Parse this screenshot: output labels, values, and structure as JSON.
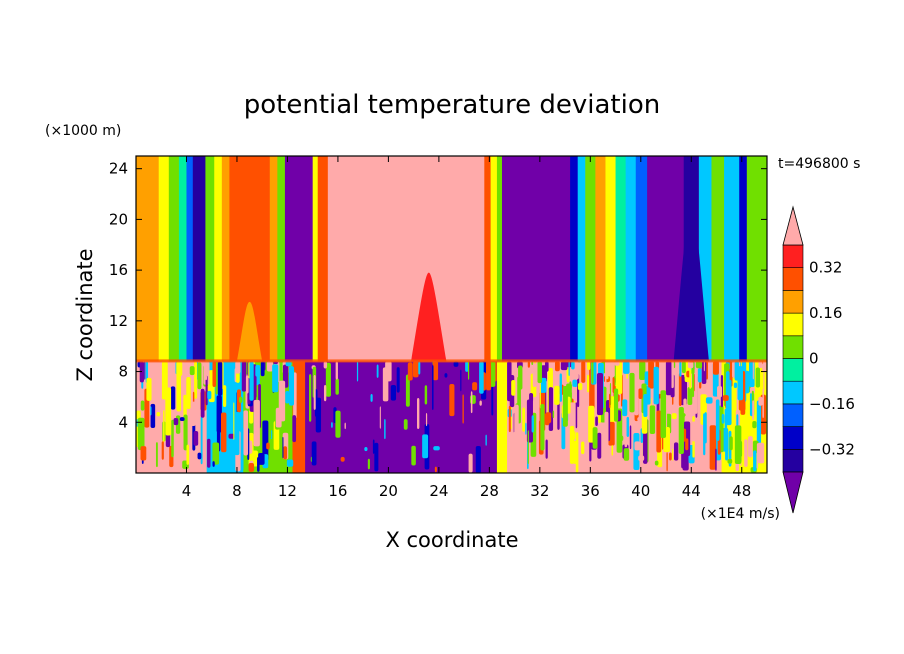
{
  "chart_data": {
    "type": "heatmap",
    "title": "potential temperature deviation",
    "xlabel": "X coordinate",
    "ylabel": "Z coordinate",
    "x_unit": "(×1E4 m/s)",
    "y_unit": "(×1000 m)",
    "time_label": "t=496800 s",
    "xlim": [
      0,
      50
    ],
    "ylim": [
      0,
      25
    ],
    "x_ticks": [
      4,
      8,
      12,
      16,
      20,
      24,
      28,
      32,
      36,
      40,
      44,
      48
    ],
    "y_ticks": [
      4,
      8,
      12,
      16,
      20,
      24
    ],
    "colorbar": {
      "levels": [
        -0.4,
        -0.32,
        -0.24,
        -0.16,
        -0.08,
        0,
        0.08,
        0.16,
        0.24,
        0.32,
        0.4
      ],
      "tick_values": [
        0.32,
        0.16,
        0,
        -0.16,
        -0.32
      ],
      "tick_labels": [
        "0.32",
        "0.16",
        "0",
        "−0.16",
        "−0.32"
      ],
      "colors": [
        "#7000a8",
        "#2400a0",
        "#0000c8",
        "#0060ff",
        "#00c8ff",
        "#00f0a0",
        "#70e000",
        "#ffff00",
        "#ffa000",
        "#ff5000",
        "#ff2020",
        "#ffaaaa"
      ]
    },
    "upper_layer_columns": [
      {
        "x0": 0.0,
        "x1": 1.0,
        "value": 0.18
      },
      {
        "x0": 1.0,
        "x1": 1.8,
        "value": 0.22
      },
      {
        "x0": 1.8,
        "x1": 2.6,
        "value": 0.1
      },
      {
        "x0": 2.6,
        "x1": 3.4,
        "value": 0.05
      },
      {
        "x0": 3.4,
        "x1": 4.0,
        "value": -0.05
      },
      {
        "x0": 4.0,
        "x1": 4.5,
        "value": -0.2
      },
      {
        "x0": 4.5,
        "x1": 5.5,
        "value": -0.35
      },
      {
        "x0": 5.5,
        "x1": 6.2,
        "value": 0.05
      },
      {
        "x0": 6.2,
        "x1": 6.8,
        "value": 0.15
      },
      {
        "x0": 6.8,
        "x1": 7.4,
        "value": 0.22
      },
      {
        "x0": 7.4,
        "x1": 10.6,
        "value": 0.3
      },
      {
        "x0": 10.6,
        "x1": 11.2,
        "value": 0.2
      },
      {
        "x0": 11.2,
        "x1": 11.8,
        "value": 0.05
      },
      {
        "x0": 11.8,
        "x1": 14.0,
        "value": -0.45
      },
      {
        "x0": 14.0,
        "x1": 14.4,
        "value": 0.1
      },
      {
        "x0": 14.4,
        "x1": 15.2,
        "value": 0.3
      },
      {
        "x0": 15.2,
        "x1": 27.6,
        "value": 0.45
      },
      {
        "x0": 27.6,
        "x1": 28.1,
        "value": 0.3
      },
      {
        "x0": 28.1,
        "x1": 28.6,
        "value": 0.15
      },
      {
        "x0": 28.6,
        "x1": 29.0,
        "value": 0.05
      },
      {
        "x0": 29.0,
        "x1": 34.4,
        "value": -0.45
      },
      {
        "x0": 34.4,
        "x1": 35.0,
        "value": -0.3
      },
      {
        "x0": 35.0,
        "x1": 35.6,
        "value": -0.1
      },
      {
        "x0": 35.6,
        "x1": 36.4,
        "value": 0.05
      },
      {
        "x0": 36.4,
        "x1": 37.2,
        "value": 0.18
      },
      {
        "x0": 37.2,
        "x1": 38.0,
        "value": 0.08
      },
      {
        "x0": 38.0,
        "x1": 38.8,
        "value": -0.02
      },
      {
        "x0": 38.8,
        "x1": 39.6,
        "value": -0.12
      },
      {
        "x0": 39.6,
        "x1": 40.5,
        "value": -0.22
      },
      {
        "x0": 40.5,
        "x1": 43.4,
        "value": -0.45
      },
      {
        "x0": 43.4,
        "x1": 44.6,
        "value": -0.35
      },
      {
        "x0": 44.6,
        "x1": 45.6,
        "value": -0.1
      },
      {
        "x0": 45.6,
        "x1": 46.6,
        "value": 0.0
      },
      {
        "x0": 46.6,
        "x1": 47.8,
        "value": -0.1
      },
      {
        "x0": 47.8,
        "x1": 48.4,
        "value": -0.3
      },
      {
        "x0": 48.4,
        "x1": 50.0,
        "value": 0.05
      }
    ],
    "upper_layer_plumes": [
      {
        "x0": 21.8,
        "x1": 24.6,
        "z_top": 15.8,
        "value": 0.34
      },
      {
        "x0": 8.0,
        "x1": 10.0,
        "z_top": 13.5,
        "value": 0.2
      },
      {
        "x0": 42.6,
        "x1": 45.4,
        "z_top": 21.5,
        "value": -0.36
      }
    ],
    "lower_layer_regions": [
      {
        "x0": 0.0,
        "x1": 5.6,
        "value": 0.45
      },
      {
        "x0": 5.6,
        "x1": 8.5,
        "value": -0.15
      },
      {
        "x0": 8.5,
        "x1": 12.4,
        "value": 0.02
      },
      {
        "x0": 12.4,
        "x1": 13.4,
        "value": 0.3
      },
      {
        "x0": 13.4,
        "x1": 28.6,
        "value": -0.45
      },
      {
        "x0": 28.6,
        "x1": 29.4,
        "value": 0.1
      },
      {
        "x0": 29.4,
        "x1": 46.4,
        "value": 0.45
      },
      {
        "x0": 46.4,
        "x1": 50.0,
        "value": 0.15
      }
    ],
    "interface_z": 8.8
  }
}
